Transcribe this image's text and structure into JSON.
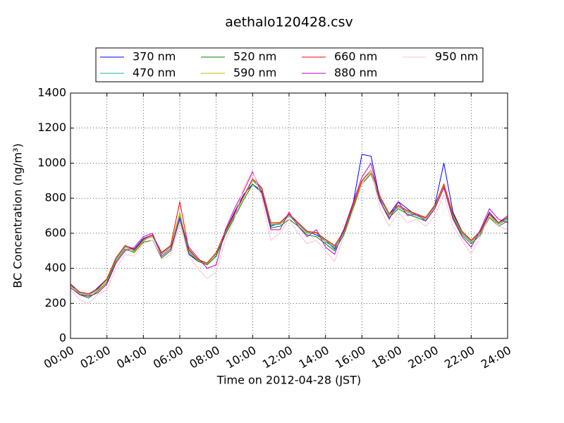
{
  "chart_data": {
    "type": "line",
    "title": "aethalo120428.csv",
    "x_label": "Time on 2012-04-28 (JST)",
    "y_label": "BC Concentration (ng/m³)",
    "x": [
      0,
      0.5,
      1,
      1.5,
      2,
      2.5,
      3,
      3.5,
      4,
      4.5,
      5,
      5.5,
      6,
      6.5,
      7,
      7.5,
      8,
      8.5,
      9,
      9.5,
      10,
      10.5,
      11,
      11.5,
      12,
      12.5,
      13,
      13.5,
      14,
      14.5,
      15,
      15.5,
      16,
      16.5,
      17,
      17.5,
      18,
      18.5,
      19,
      19.5,
      20,
      20.5,
      21,
      21.5,
      22,
      22.5,
      23,
      23.5,
      24
    ],
    "series": [
      {
        "name": "370 nm",
        "color": "#0000ff",
        "values": [
          310,
          250,
          240,
          290,
          340,
          460,
          530,
          510,
          570,
          590,
          490,
          530,
          690,
          480,
          440,
          420,
          470,
          610,
          720,
          820,
          880,
          840,
          640,
          660,
          700,
          660,
          610,
          590,
          560,
          510,
          620,
          760,
          1050,
          1040,
          790,
          710,
          780,
          740,
          700,
          690,
          760,
          1000,
          720,
          610,
          560,
          610,
          720,
          660,
          690
        ]
      },
      {
        "name": "470 nm",
        "color": "#20b2aa",
        "values": [
          300,
          260,
          250,
          280,
          330,
          450,
          520,
          500,
          560,
          580,
          480,
          520,
          700,
          510,
          450,
          430,
          480,
          600,
          700,
          810,
          900,
          850,
          650,
          650,
          700,
          650,
          600,
          600,
          550,
          520,
          600,
          750,
          900,
          960,
          800,
          700,
          750,
          720,
          700,
          680,
          750,
          880,
          700,
          600,
          550,
          600,
          700,
          650,
          680
        ]
      },
      {
        "name": "520 nm",
        "color": "#008000",
        "values": [
          290,
          250,
          230,
          270,
          320,
          440,
          510,
          490,
          550,
          560,
          460,
          500,
          680,
          490,
          440,
          420,
          470,
          590,
          690,
          790,
          880,
          830,
          630,
          640,
          680,
          640,
          590,
          580,
          540,
          500,
          590,
          740,
          880,
          940,
          780,
          690,
          740,
          710,
          690,
          670,
          740,
          860,
          690,
          590,
          540,
          590,
          690,
          640,
          670
        ]
      },
      {
        "name": "590 nm",
        "color": "#bfbf00",
        "values": [
          300,
          255,
          245,
          275,
          335,
          455,
          525,
          495,
          555,
          585,
          485,
          525,
          720,
          500,
          445,
          425,
          485,
          605,
          705,
          805,
          905,
          855,
          655,
          655,
          705,
          655,
          605,
          600,
          560,
          525,
          605,
          755,
          890,
          950,
          805,
          705,
          755,
          725,
          705,
          685,
          755,
          870,
          705,
          605,
          555,
          605,
          705,
          655,
          685
        ]
      },
      {
        "name": "660 nm",
        "color": "#ff0000",
        "values": [
          310,
          265,
          255,
          285,
          340,
          460,
          530,
          505,
          565,
          590,
          490,
          530,
          780,
          505,
          450,
          430,
          490,
          610,
          710,
          810,
          910,
          860,
          660,
          660,
          710,
          660,
          610,
          605,
          565,
          530,
          610,
          760,
          900,
          960,
          810,
          710,
          760,
          730,
          710,
          690,
          760,
          880,
          710,
          610,
          560,
          610,
          710,
          660,
          700
        ]
      },
      {
        "name": "880 nm",
        "color": "#bf00bf",
        "values": [
          290,
          250,
          240,
          260,
          310,
          430,
          500,
          520,
          580,
          600,
          470,
          510,
          680,
          520,
          460,
          400,
          420,
          620,
          740,
          840,
          950,
          830,
          620,
          620,
          720,
          640,
          580,
          620,
          520,
          480,
          620,
          770,
          920,
          1000,
          780,
          680,
          780,
          700,
          710,
          670,
          740,
          860,
          680,
          580,
          520,
          620,
          740,
          680,
          660
        ]
      },
      {
        "name": "950 nm",
        "color": "#ffc0cb",
        "values": [
          280,
          220,
          200,
          250,
          280,
          400,
          480,
          470,
          540,
          560,
          450,
          480,
          650,
          470,
          400,
          340,
          380,
          560,
          680,
          860,
          960,
          800,
          560,
          600,
          680,
          600,
          540,
          560,
          500,
          440,
          580,
          720,
          880,
          960,
          740,
          640,
          720,
          660,
          680,
          640,
          700,
          820,
          640,
          560,
          480,
          580,
          700,
          640,
          620
        ]
      }
    ],
    "xlim": [
      0,
      24
    ],
    "xticks": [
      {
        "value": 0,
        "label": "00:00"
      },
      {
        "value": 2,
        "label": "02:00"
      },
      {
        "value": 4,
        "label": "04:00"
      },
      {
        "value": 6,
        "label": "06:00"
      },
      {
        "value": 8,
        "label": "08:00"
      },
      {
        "value": 10,
        "label": "10:00"
      },
      {
        "value": 12,
        "label": "12:00"
      },
      {
        "value": 14,
        "label": "14:00"
      },
      {
        "value": 16,
        "label": "16:00"
      },
      {
        "value": 18,
        "label": "18:00"
      },
      {
        "value": 20,
        "label": "20:00"
      },
      {
        "value": 22,
        "label": "22:00"
      },
      {
        "value": 24,
        "label": "24:00"
      }
    ],
    "ylim": [
      0,
      1400
    ],
    "yticks": [
      0,
      200,
      400,
      600,
      800,
      1000,
      1200,
      1400
    ],
    "grid": true,
    "legend": "above"
  }
}
